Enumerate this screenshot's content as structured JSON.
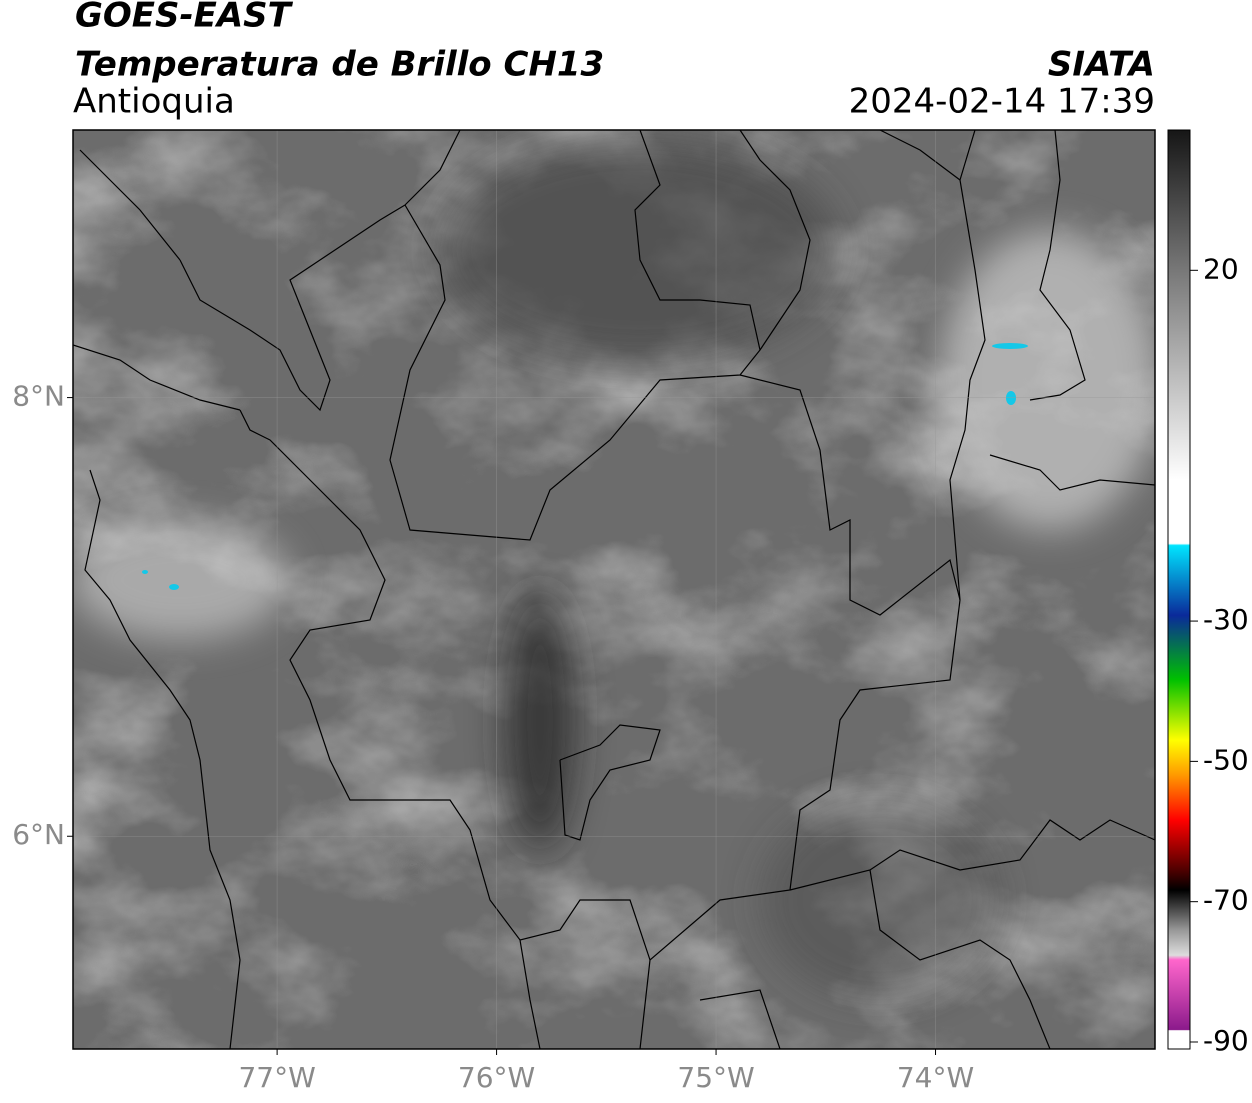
{
  "chart_data": {
    "type": "map",
    "title": "GOES-EAST",
    "subtitle": "Temperatura de Brillo CH13",
    "region": "Antioquia",
    "source": "SIATA",
    "timestamp": "2024-02-14 17:39",
    "xlim": [
      -77.93,
      -73.0
    ],
    "ylim": [
      5.03,
      9.22
    ],
    "xticks": [
      {
        "value": -77,
        "label": "77°W"
      },
      {
        "value": -76,
        "label": "76°W"
      },
      {
        "value": -75,
        "label": "75°W"
      },
      {
        "value": -74,
        "label": "74°W"
      }
    ],
    "yticks": [
      {
        "value": 6,
        "label": "6°N"
      },
      {
        "value": 8,
        "label": "8°N"
      }
    ],
    "grid": true,
    "colorbar": {
      "lim": [
        -91,
        40
      ],
      "ticks": [
        20,
        -30,
        -50,
        -70,
        -90
      ]
    }
  }
}
